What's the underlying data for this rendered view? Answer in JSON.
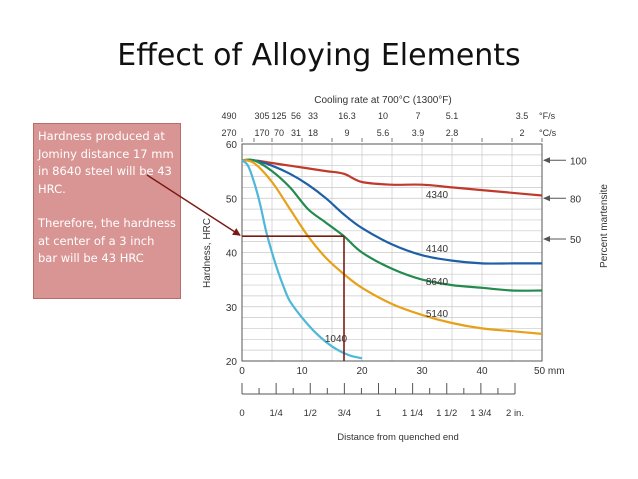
{
  "slide": {
    "title": "Effect of Alloying Elements",
    "callout_p1": "Hardness produced at Jominy distance 17 mm in 8640 steel will be 43 HRC.",
    "callout_p2": "Therefore, the hardness at center of a 3 inch bar will be 43 HRC"
  },
  "chart_data": {
    "type": "line",
    "top_axis_title": "Cooling rate at 700°C (1300°F)",
    "top_rows": [
      {
        "unit": "°F/s",
        "labels": [
          "490",
          "305",
          "125",
          "56",
          "33",
          "16.3",
          "10",
          "7",
          "5.1",
          "3.5"
        ]
      },
      {
        "unit": "°C/s",
        "labels": [
          "270",
          "170",
          "70",
          "31",
          "18",
          "9",
          "5.6",
          "3.9",
          "2.8",
          "2"
        ]
      }
    ],
    "xlabel": "Distance from quenched end",
    "x_ticks_mm": [
      0,
      10,
      20,
      30,
      40,
      50
    ],
    "x_tick_labels_mm": [
      "0",
      "10",
      "20",
      "30",
      "40",
      "50 mm"
    ],
    "xlim": [
      0,
      50
    ],
    "x_inch_tick_labels": [
      "0",
      "1/4",
      "1/2",
      "3/4",
      "1",
      "1 1/4",
      "1 1/2",
      "1 3/4",
      "2 in."
    ],
    "ylabel": "Hardness, HRC",
    "ylim": [
      20,
      60
    ],
    "y_ticks": [
      20,
      30,
      40,
      50,
      60
    ],
    "right_axis_title": "Percent martensite",
    "right_markers": [
      {
        "label": "100",
        "y": 57
      },
      {
        "label": "80",
        "y": 50
      },
      {
        "label": "50",
        "y": 42.5
      }
    ],
    "series": [
      {
        "name": "4340",
        "color": "#c0392b",
        "x": [
          0,
          2,
          5,
          8,
          11,
          14,
          17,
          20,
          25,
          30,
          35,
          40,
          45,
          50
        ],
        "y": [
          57,
          57,
          56.5,
          56,
          55.5,
          55,
          54.5,
          53,
          52.5,
          52.5,
          52,
          51.5,
          51,
          50.5
        ]
      },
      {
        "name": "4140",
        "color": "#1f5fa8",
        "x": [
          0,
          2,
          5,
          8,
          11,
          14,
          17,
          20,
          25,
          30,
          35,
          40,
          45,
          50
        ],
        "y": [
          57,
          57,
          56,
          54.5,
          52.5,
          50,
          47,
          44.5,
          41.5,
          39.5,
          38.5,
          38,
          38,
          38
        ]
      },
      {
        "name": "8640",
        "color": "#238b4e",
        "x": [
          0,
          2,
          5,
          8,
          11,
          14,
          17,
          20,
          25,
          30,
          35,
          40,
          45,
          50
        ],
        "y": [
          57,
          57,
          55,
          52,
          48,
          45.5,
          43,
          40,
          37,
          35,
          34,
          33.5,
          33,
          33
        ]
      },
      {
        "name": "5140",
        "color": "#e8a019",
        "x": [
          0,
          2,
          5,
          8,
          11,
          14,
          17,
          20,
          25,
          30,
          35,
          40,
          45,
          50
        ],
        "y": [
          57,
          56.5,
          53,
          48,
          43,
          39,
          36,
          33.5,
          30.5,
          28.5,
          27,
          26,
          25.5,
          25
        ]
      },
      {
        "name": "1040",
        "color": "#4fb8d8",
        "x": [
          0,
          1,
          2,
          3,
          4,
          5,
          6,
          7,
          8,
          10,
          12,
          14,
          16,
          18,
          20
        ],
        "y": [
          57,
          56,
          53,
          49,
          44,
          40,
          36.5,
          33.5,
          31,
          28,
          25.5,
          23.5,
          22,
          21,
          20.5
        ]
      }
    ],
    "annotation": {
      "jominy_distance_mm": 17,
      "hardness_hrc": 43
    }
  }
}
